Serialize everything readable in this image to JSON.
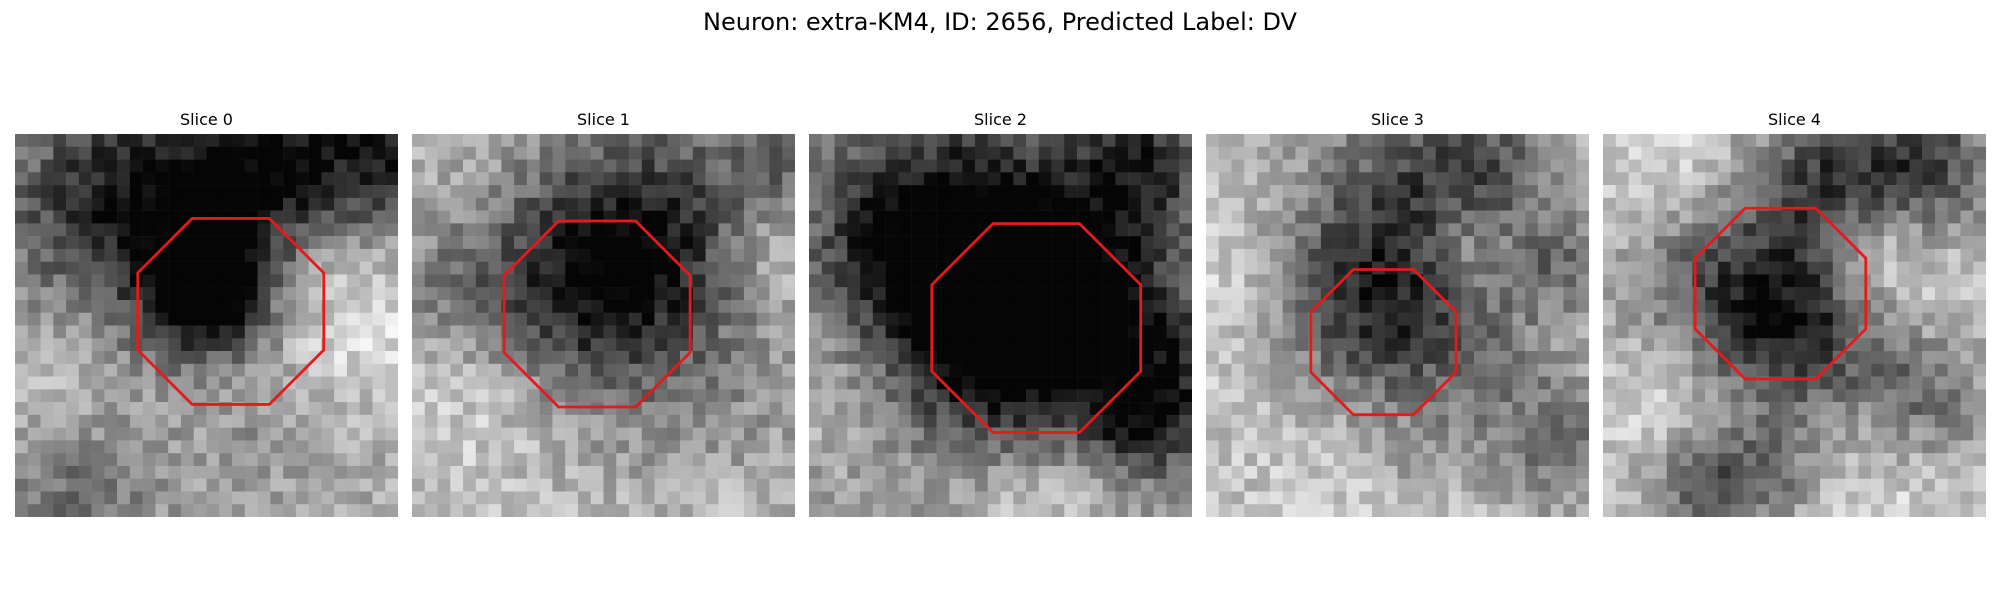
{
  "figure": {
    "title": "Neuron: extra-KM4, ID: 2656, Predicted Label: DV"
  },
  "roi_color": "#e41a1c",
  "panels": [
    {
      "title": "Slice 0"
    },
    {
      "title": "Slice 1"
    },
    {
      "title": "Slice 2"
    },
    {
      "title": "Slice 3"
    },
    {
      "title": "Slice 4"
    }
  ]
}
